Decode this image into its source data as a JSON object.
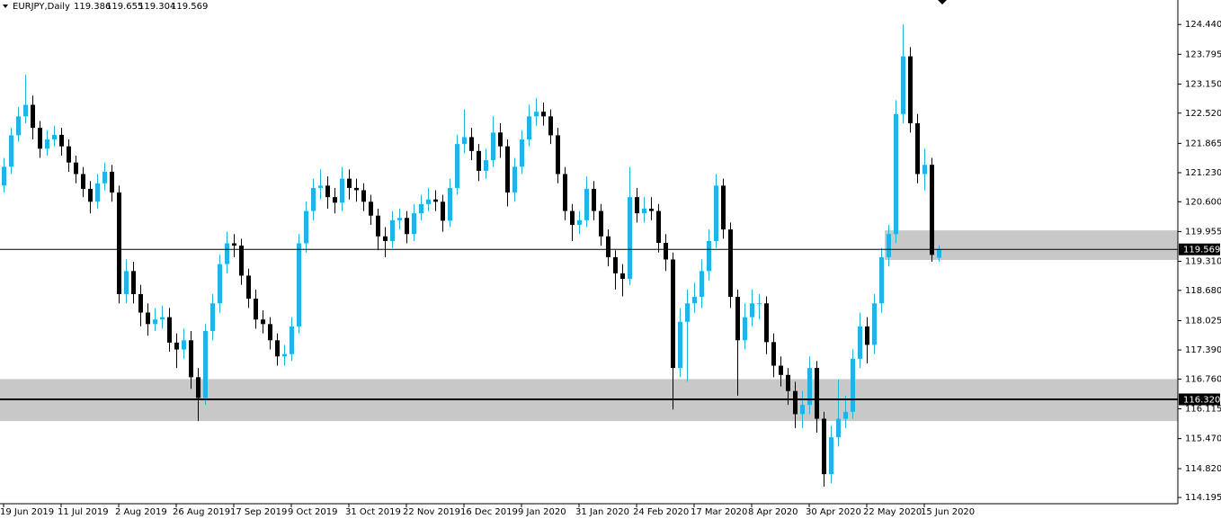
{
  "chart_data": {
    "type": "candlestick",
    "title": "EURJPY,Daily",
    "up_color": "#1fb5e3",
    "down_color": "#000000",
    "zone_color": "#c8c8c8",
    "ylim": [
      114.06,
      124.97
    ],
    "yticks": [
      {
        "value": 124.44,
        "label": "124.440"
      },
      {
        "value": 123.795,
        "label": "123.795"
      },
      {
        "value": 123.15,
        "label": "123.150"
      },
      {
        "value": 122.52,
        "label": "122.520"
      },
      121.865,
      {
        "value": 121.23,
        "label": "121.230"
      },
      {
        "value": 120.6,
        "label": "120.600"
      },
      119.955,
      {
        "value": 119.31,
        "label": "119.310"
      },
      {
        "value": 118.68,
        "label": "118.680"
      },
      118.025,
      {
        "value": 117.39,
        "label": "117.390"
      },
      {
        "value": 116.76,
        "label": "116.760"
      },
      116.115,
      {
        "value": 115.47,
        "label": "115.470"
      },
      {
        "value": 114.82,
        "label": "114.820"
      },
      114.195
    ],
    "categories": [
      "19 Jun 2019",
      null,
      null,
      null,
      null,
      null,
      null,
      null,
      "11 Jul 2019",
      null,
      null,
      null,
      null,
      null,
      null,
      null,
      "2 Aug 2019",
      null,
      null,
      null,
      null,
      null,
      null,
      null,
      "26 Aug 2019",
      null,
      null,
      null,
      null,
      null,
      null,
      null,
      "17 Sep 2019",
      null,
      null,
      null,
      null,
      null,
      null,
      null,
      "9 Oct 2019",
      null,
      null,
      null,
      null,
      null,
      null,
      null,
      "31 Oct 2019",
      null,
      null,
      null,
      null,
      null,
      null,
      null,
      "22 Nov 2019",
      null,
      null,
      null,
      null,
      null,
      null,
      null,
      "16 Dec 2019",
      null,
      null,
      null,
      null,
      null,
      null,
      null,
      "9 Jan 2020",
      null,
      null,
      null,
      null,
      null,
      null,
      null,
      "31 Jan 2020",
      null,
      null,
      null,
      null,
      null,
      null,
      null,
      "24 Feb 2020",
      null,
      null,
      null,
      null,
      null,
      null,
      null,
      "17 Mar 2020",
      null,
      null,
      null,
      null,
      null,
      null,
      null,
      "8 Apr 2020",
      null,
      null,
      null,
      null,
      null,
      null,
      null,
      "30 Apr 2020",
      null,
      null,
      null,
      null,
      null,
      null,
      null,
      "22 May 2020",
      null,
      null,
      null,
      null,
      null,
      null,
      null,
      "15 Jun 2020",
      null,
      null
    ],
    "open": [
      120.95,
      121.36,
      122.04,
      122.45,
      122.7,
      122.2,
      121.75,
      121.95,
      122.05,
      121.8,
      121.45,
      121.2,
      120.88,
      120.6,
      121.0,
      121.25,
      120.8,
      118.6,
      119.1,
      118.6,
      118.2,
      117.95,
      118.05,
      118.1,
      117.55,
      117.4,
      117.6,
      116.8,
      116.35,
      117.8,
      118.4,
      119.25,
      119.7,
      119.65,
      119.0,
      118.5,
      118.05,
      117.95,
      117.6,
      117.25,
      117.3,
      117.9,
      119.7,
      120.4,
      120.9,
      120.95,
      120.7,
      120.58,
      121.1,
      120.9,
      120.85,
      120.6,
      120.3,
      119.85,
      119.75,
      120.2,
      120.25,
      119.9,
      120.35,
      120.55,
      120.65,
      120.6,
      120.19,
      120.9,
      121.85,
      122.0,
      121.7,
      121.27,
      121.5,
      122.1,
      121.8,
      120.8,
      121.36,
      121.95,
      122.45,
      122.55,
      122.45,
      122.04,
      121.2,
      120.4,
      120.1,
      120.2,
      120.88,
      120.4,
      119.85,
      119.4,
      119.05,
      118.93,
      120.7,
      120.35,
      120.45,
      120.4,
      119.71,
      119.35,
      117.0,
      118.0,
      118.4,
      118.54,
      119.1,
      119.75,
      120.95,
      120.0,
      118.54,
      117.6,
      118.1,
      118.4,
      118.4,
      117.56,
      117.05,
      116.85,
      116.5,
      116.0,
      116.2,
      117.0,
      115.9,
      114.7,
      115.5,
      115.9,
      116.05,
      117.2,
      117.9,
      117.5,
      118.4,
      119.4,
      119.9,
      122.5,
      123.75,
      122.3,
      121.2,
      121.4,
      119.386
    ],
    "high": [
      121.55,
      122.2,
      122.65,
      123.35,
      122.9,
      122.35,
      122.15,
      122.25,
      122.2,
      121.95,
      121.6,
      121.35,
      121.05,
      121.2,
      121.45,
      121.4,
      120.95,
      119.35,
      119.3,
      118.8,
      118.4,
      118.3,
      118.35,
      118.3,
      117.75,
      117.85,
      117.8,
      117.0,
      117.95,
      118.6,
      119.45,
      119.95,
      119.9,
      119.8,
      119.15,
      118.7,
      118.25,
      118.1,
      117.75,
      117.5,
      118.1,
      119.9,
      120.6,
      121.1,
      121.3,
      121.15,
      120.9,
      121.35,
      121.3,
      121.1,
      121.0,
      120.75,
      120.45,
      120.05,
      120.4,
      120.45,
      120.4,
      120.55,
      120.75,
      120.9,
      120.85,
      120.75,
      121.1,
      122.05,
      122.6,
      122.2,
      121.85,
      121.75,
      122.45,
      122.3,
      121.95,
      121.55,
      122.15,
      122.7,
      122.85,
      122.75,
      122.6,
      122.2,
      121.35,
      120.55,
      120.4,
      121.15,
      121.05,
      120.55,
      120.0,
      119.55,
      119.25,
      121.35,
      120.9,
      120.7,
      120.7,
      120.55,
      119.9,
      119.5,
      118.3,
      118.7,
      118.85,
      119.35,
      120.0,
      121.2,
      121.1,
      120.15,
      118.7,
      118.4,
      118.7,
      118.6,
      118.55,
      117.75,
      117.25,
      117.0,
      116.7,
      116.5,
      117.25,
      117.15,
      116.05,
      115.75,
      116.75,
      116.4,
      117.4,
      118.2,
      118.1,
      118.6,
      119.6,
      120.1,
      122.8,
      124.44,
      123.95,
      122.5,
      121.75,
      121.55,
      119.655
    ],
    "low": [
      120.8,
      121.2,
      121.9,
      122.3,
      121.95,
      121.55,
      121.6,
      121.8,
      121.6,
      121.25,
      121.0,
      120.7,
      120.35,
      120.45,
      120.85,
      120.6,
      118.4,
      118.4,
      118.4,
      117.9,
      117.7,
      117.8,
      117.85,
      117.35,
      117.0,
      117.2,
      116.55,
      115.85,
      116.2,
      117.6,
      118.2,
      119.05,
      119.4,
      118.8,
      118.3,
      117.85,
      117.75,
      117.4,
      117.05,
      117.05,
      117.15,
      117.75,
      119.5,
      120.2,
      120.65,
      120.45,
      120.35,
      120.4,
      120.65,
      120.6,
      120.4,
      120.1,
      119.55,
      119.4,
      119.6,
      120.0,
      119.7,
      119.75,
      120.2,
      120.4,
      120.4,
      119.95,
      120.05,
      120.75,
      121.65,
      121.5,
      121.05,
      121.1,
      121.35,
      121.55,
      120.5,
      120.6,
      121.2,
      121.8,
      122.25,
      122.25,
      121.85,
      121.0,
      120.2,
      119.75,
      119.9,
      120.05,
      120.2,
      119.65,
      119.2,
      118.7,
      118.55,
      118.8,
      120.15,
      120.15,
      120.2,
      119.5,
      119.1,
      116.1,
      116.8,
      116.7,
      118.2,
      118.3,
      118.9,
      119.6,
      119.8,
      118.3,
      116.4,
      117.4,
      117.9,
      118.05,
      117.3,
      116.8,
      116.6,
      116.2,
      115.7,
      115.7,
      116.0,
      115.6,
      114.43,
      114.5,
      115.3,
      115.7,
      115.9,
      117.0,
      117.1,
      117.3,
      118.2,
      119.2,
      119.7,
      122.3,
      122.1,
      121.0,
      120.85,
      119.3,
      119.304
    ],
    "close": [
      121.36,
      122.04,
      122.45,
      122.7,
      122.2,
      121.75,
      121.95,
      122.05,
      121.8,
      121.45,
      121.2,
      120.88,
      120.6,
      121.0,
      121.25,
      120.8,
      118.6,
      119.1,
      118.6,
      118.2,
      117.95,
      118.05,
      118.1,
      117.55,
      117.4,
      117.6,
      116.8,
      116.35,
      117.8,
      118.4,
      119.25,
      119.7,
      119.65,
      119.0,
      118.5,
      118.05,
      117.95,
      117.6,
      117.25,
      117.3,
      117.9,
      119.7,
      120.4,
      120.9,
      120.95,
      120.7,
      120.58,
      121.1,
      120.9,
      120.85,
      120.6,
      120.3,
      119.85,
      119.75,
      120.2,
      120.25,
      119.9,
      120.35,
      120.55,
      120.65,
      120.6,
      120.19,
      120.9,
      121.85,
      122.0,
      121.7,
      121.27,
      121.5,
      122.1,
      121.8,
      120.8,
      121.36,
      121.95,
      122.45,
      122.55,
      122.45,
      122.04,
      121.2,
      120.4,
      120.1,
      120.2,
      120.88,
      120.4,
      119.85,
      119.4,
      119.05,
      118.93,
      120.7,
      120.35,
      120.45,
      120.4,
      119.71,
      119.35,
      117.0,
      118.0,
      118.4,
      118.54,
      119.1,
      119.75,
      120.95,
      120.0,
      118.54,
      117.6,
      118.1,
      118.4,
      118.4,
      117.56,
      117.05,
      116.85,
      116.5,
      116.0,
      116.2,
      117.0,
      115.9,
      114.7,
      115.5,
      115.9,
      116.05,
      117.2,
      117.9,
      117.5,
      118.4,
      119.4,
      119.9,
      122.5,
      123.75,
      122.3,
      121.2,
      121.4,
      119.45,
      119.569
    ],
    "zones": [
      {
        "from": 115.85,
        "to": 116.76,
        "x_start": 0
      },
      {
        "from": 119.34,
        "to": 119.98,
        "x_start": 123
      }
    ],
    "hlines": [
      119.569,
      {
        "value": 116.32,
        "label": "116.320"
      }
    ]
  }
}
